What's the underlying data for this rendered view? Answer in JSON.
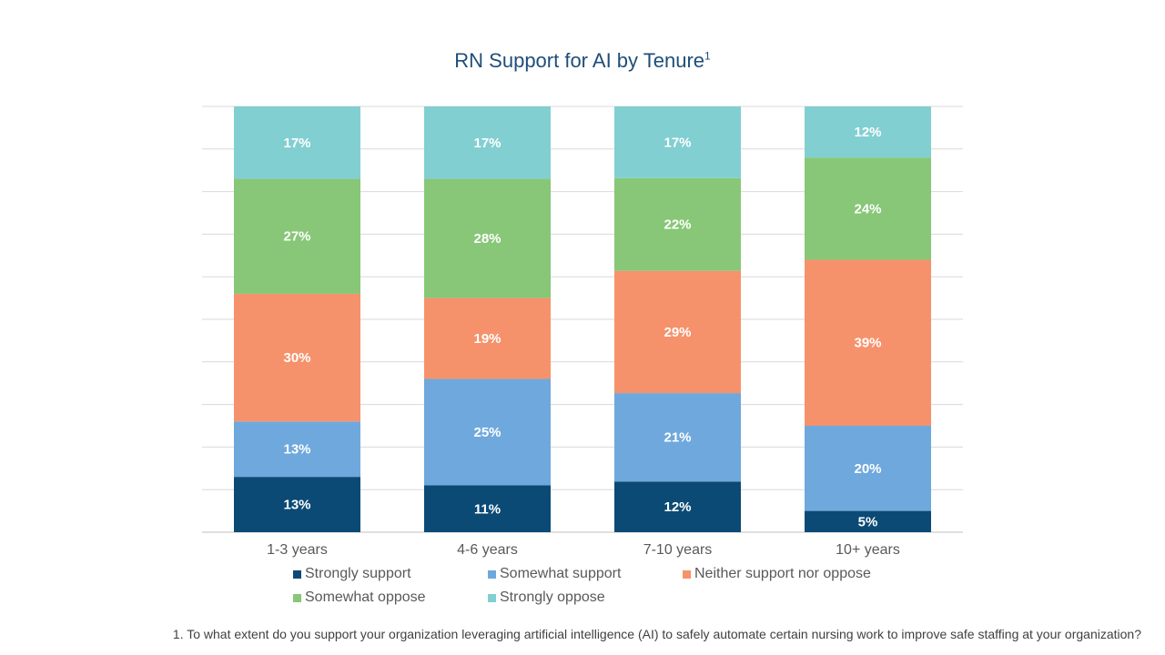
{
  "chart_data": {
    "type": "bar",
    "stacked": true,
    "title": "RN Support for AI by Tenure",
    "title_superscript": "1",
    "categories": [
      "1-3 years",
      "4-6 years",
      "7-10 years",
      "10+ years"
    ],
    "series": [
      {
        "name": "Strongly support",
        "color": "#0b4a75",
        "values": [
          13,
          11,
          12,
          5
        ]
      },
      {
        "name": "Somewhat support",
        "color": "#6fa8dc",
        "values": [
          13,
          25,
          21,
          20
        ]
      },
      {
        "name": "Neither support nor oppose",
        "color": "#f6926b",
        "values": [
          30,
          19,
          29,
          39
        ]
      },
      {
        "name": "Somewhat oppose",
        "color": "#87c777",
        "values": [
          27,
          28,
          22,
          24
        ]
      },
      {
        "name": "Strongly oppose",
        "color": "#82cfd2",
        "values": [
          17,
          17,
          17,
          12
        ]
      }
    ],
    "value_suffix": "%",
    "ylim": [
      0,
      100
    ],
    "grid": true,
    "legend_position": "bottom"
  },
  "footnote": "1. To what extent do you support your organization leveraging artificial intelligence (AI) to safely automate certain nursing work to improve safe staffing at your organization?"
}
